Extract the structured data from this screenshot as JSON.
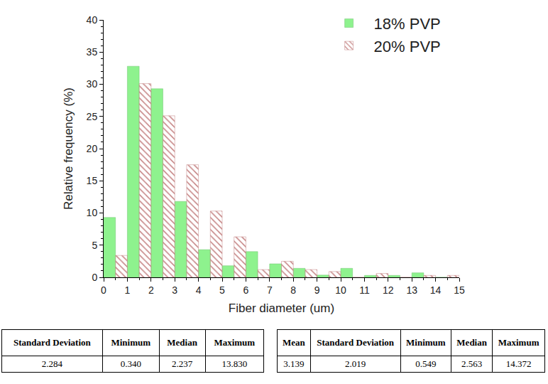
{
  "chart_data": {
    "type": "histogram",
    "x_label": "Fiber diameter (um)",
    "y_label": "Relative frequency (%)",
    "bins": [
      0,
      1,
      2,
      3,
      4,
      5,
      6,
      7,
      8,
      9,
      10,
      11,
      12,
      13,
      14,
      15
    ],
    "series": [
      {
        "name": "18% PVP",
        "color": "#8ef28e",
        "marker": "solid",
        "values": [
          9.3,
          32.8,
          29.3,
          11.8,
          4.3,
          1.8,
          4.0,
          2.1,
          1.4,
          0.35,
          1.4,
          0.3,
          0.3,
          0.7,
          0
        ]
      },
      {
        "name": "20% PVP",
        "color": "#f4a0a0",
        "marker": "hatched",
        "values": [
          3.4,
          30.1,
          25.1,
          17.5,
          10.3,
          6.3,
          1.2,
          2.5,
          1.2,
          0.9,
          0,
          0.6,
          0,
          0.3,
          0.3
        ]
      }
    ],
    "xlim": [
      0,
      15
    ],
    "xticks": [
      0,
      1,
      2,
      3,
      4,
      5,
      6,
      7,
      8,
      9,
      10,
      11,
      12,
      13,
      14,
      15
    ],
    "ylim": [
      0,
      40
    ],
    "yticks": [
      0,
      5,
      10,
      15,
      20,
      25,
      30,
      35,
      40
    ],
    "grid": false,
    "legend": "upper right"
  },
  "tables": [
    {
      "header": [
        "Standard Deviation",
        "Minimum",
        "Median",
        "Maximum"
      ],
      "rows": [
        [
          "2.284",
          "0.340",
          "2.237",
          "13.830"
        ]
      ]
    },
    {
      "header": [
        "Mean",
        "Standard Deviation",
        "Minimum",
        "Median",
        "Maximum"
      ],
      "rows": [
        [
          "3.139",
          "2.019",
          "0.549",
          "2.563",
          "14.372"
        ]
      ]
    }
  ]
}
